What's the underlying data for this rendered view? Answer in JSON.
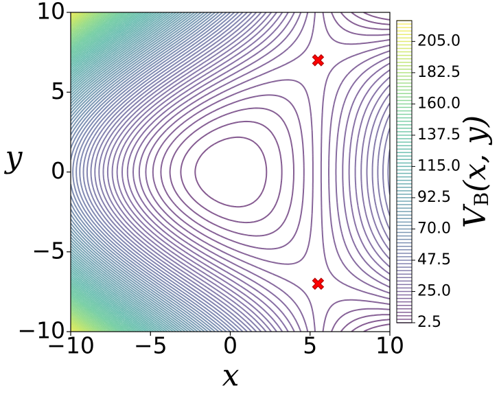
{
  "chart_data": {
    "type": "contour",
    "x_label": "x",
    "y_label": "y",
    "xlim": [
      -10,
      10
    ],
    "ylim": [
      -10,
      10
    ],
    "xticks": [
      {
        "value": -10,
        "label": "−10"
      },
      {
        "value": -5,
        "label": "−5"
      },
      0,
      5,
      10
    ],
    "yticks": [
      {
        "value": -10,
        "label": "−10"
      },
      {
        "value": -5,
        "label": "−5"
      },
      0,
      5,
      10
    ],
    "levels": [
      2.5,
      5,
      7.5,
      10,
      12.5,
      15,
      17.5,
      20,
      22.5,
      25,
      27.5,
      30,
      32.5,
      35,
      37.5,
      40,
      42.5,
      45,
      47.5,
      50,
      52.5,
      55,
      57.5,
      60,
      62.5,
      65,
      67.5,
      70,
      72.5,
      75,
      77.5,
      80,
      82.5,
      85,
      87.5,
      90,
      92.5,
      95,
      97.5,
      100,
      102.5,
      105,
      107.5,
      110,
      112.5,
      115,
      117.5,
      120,
      122.5,
      125,
      127.5,
      130,
      132.5,
      135,
      137.5,
      140,
      142.5,
      145,
      147.5,
      150,
      152.5,
      155,
      157.5,
      160,
      162.5,
      165,
      167.5,
      170,
      172.5,
      175,
      177.5,
      180,
      182.5,
      185,
      187.5,
      190,
      192.5,
      195,
      197.5,
      200,
      202.5,
      205,
      207.5,
      210,
      212.5,
      215,
      217.5,
      220
    ],
    "colormap": "viridis",
    "markers": {
      "x": [
        5.5,
        5.5
      ],
      "y": [
        7,
        -7
      ],
      "color": "#ff0000"
    },
    "colorbar": {
      "label": [
        "V",
        "B",
        "(x, y)"
      ],
      "lim": [
        2.5,
        220
      ],
      "ticks": [
        2.5,
        {
          "value": 25,
          "label": "25.0"
        },
        {
          "value": 47.5,
          "label": "47.5"
        },
        {
          "value": 70,
          "label": "70.0"
        },
        {
          "value": 92.5,
          "label": "92.5"
        },
        {
          "value": 115,
          "label": "115.0"
        },
        {
          "value": 137.5,
          "label": "137.5"
        },
        {
          "value": 160,
          "label": "160.0"
        },
        {
          "value": 182.5,
          "label": "182.5"
        },
        {
          "value": 205,
          "label": "205.0"
        }
      ]
    }
  }
}
